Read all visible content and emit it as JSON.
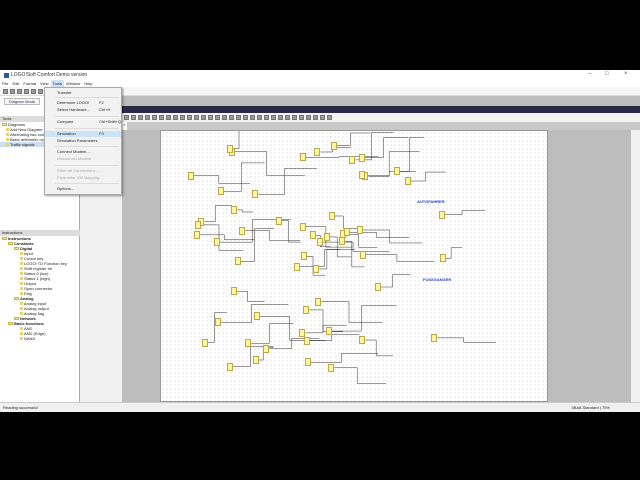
{
  "window": {
    "title": "LOGO!Soft Comfort Demo version"
  },
  "menubar": [
    "File",
    "Edit",
    "Format",
    "View",
    "Tools",
    "Window",
    "Help"
  ],
  "sidebar": {
    "mode_button": "Diagram Mode",
    "tools_header": "Tools",
    "diagrams": [
      {
        "label": "Diagrams"
      },
      {
        "label": "Add New Diagram"
      },
      {
        "label": "Alternating two colors"
      },
      {
        "label": "Basic arithmetic operations"
      },
      {
        "label": "Traffic signals"
      }
    ],
    "instructions_header": "Instructions",
    "instructions": [
      {
        "label": "Instructions",
        "level": 0
      },
      {
        "label": "Constants",
        "level": 1
      },
      {
        "label": "Digital",
        "level": 2
      },
      {
        "label": "Input",
        "level": 3
      },
      {
        "label": "Cursor key",
        "level": 3
      },
      {
        "label": "LOGO! TD Function key",
        "level": 3
      },
      {
        "label": "Shift register bit",
        "level": 3
      },
      {
        "label": "Status 0 (low)",
        "level": 3
      },
      {
        "label": "Status 1 (high)",
        "level": 3
      },
      {
        "label": "Output",
        "level": 3
      },
      {
        "label": "Open connector",
        "level": 3
      },
      {
        "label": "Flag",
        "level": 3
      },
      {
        "label": "Analog",
        "level": 2
      },
      {
        "label": "Analog input",
        "level": 3
      },
      {
        "label": "Analog output",
        "level": 3
      },
      {
        "label": "Analog flag",
        "level": 3
      },
      {
        "label": "Network",
        "level": 2
      },
      {
        "label": "Basic functions",
        "level": 1
      },
      {
        "label": "AND",
        "level": 3
      },
      {
        "label": "AND (Edge)",
        "level": 3
      },
      {
        "label": "NAND",
        "level": 3
      }
    ]
  },
  "tools_menu": [
    {
      "label": "Transfer",
      "key": ""
    },
    {
      "label": "Determine LOGO!",
      "key": "F2"
    },
    {
      "label": "Select Hardware...",
      "key": "Ctrl+H"
    },
    {
      "label": "Compare",
      "key": "Ctrl+Shift+Q"
    },
    {
      "label": "Simulation",
      "key": "F3",
      "highlight": true
    },
    {
      "label": "Simulation Parameters",
      "key": ""
    },
    {
      "label": "Connect Modem...",
      "key": ""
    },
    {
      "label": "Disconnect Modem",
      "key": "",
      "disabled": true
    },
    {
      "label": "Ethernet Connections...",
      "key": "",
      "disabled": true
    },
    {
      "label": "Parameter VM Mapping...",
      "key": "",
      "disabled": true
    },
    {
      "label": "Options...",
      "key": ""
    }
  ],
  "diagram": {
    "labels": [
      "AUTOFAHRER",
      "FUSSGANGER"
    ],
    "label_color": "#2b3fb8"
  },
  "status": {
    "left": "Reading successful",
    "right": "0BA8.Standard",
    "zoom": "75%"
  }
}
